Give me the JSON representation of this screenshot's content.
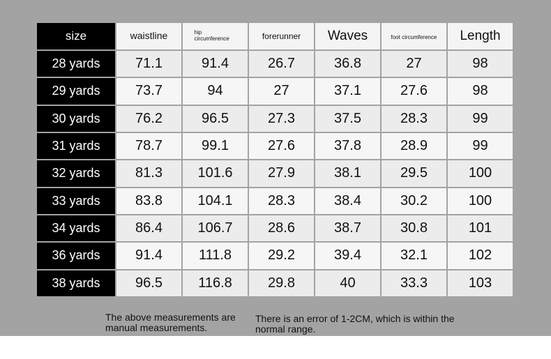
{
  "headers": {
    "size": "size",
    "waistline": "waistline",
    "hip": "hip circumference",
    "forerunner": "forerunner",
    "waves": "Waves",
    "foot": "foot circumference",
    "length": "Length"
  },
  "rows": [
    {
      "size": "28 yards",
      "waistline": "71.1",
      "hip": "91.4",
      "forerunner": "26.7",
      "waves": "36.8",
      "foot": "27",
      "length": "98"
    },
    {
      "size": "29 yards",
      "waistline": "73.7",
      "hip": "94",
      "forerunner": "27",
      "waves": "37.1",
      "foot": "27.6",
      "length": "98"
    },
    {
      "size": "30 yards",
      "waistline": "76.2",
      "hip": "96.5",
      "forerunner": "27.3",
      "waves": "37.5",
      "foot": "28.3",
      "length": "99"
    },
    {
      "size": "31 yards",
      "waistline": "78.7",
      "hip": "99.1",
      "forerunner": "27.6",
      "waves": "37.8",
      "foot": "28.9",
      "length": "99"
    },
    {
      "size": "32 yards",
      "waistline": "81.3",
      "hip": "101.6",
      "forerunner": "27.9",
      "waves": "38.1",
      "foot": "29.5",
      "length": "100"
    },
    {
      "size": "33 yards",
      "waistline": "83.8",
      "hip": "104.1",
      "forerunner": "28.3",
      "waves": "38.4",
      "foot": "30.2",
      "length": "100"
    },
    {
      "size": "34 yards",
      "waistline": "86.4",
      "hip": "106.7",
      "forerunner": "28.6",
      "waves": "38.7",
      "foot": "30.8",
      "length": "101"
    },
    {
      "size": "36 yards",
      "waistline": "91.4",
      "hip": "111.8",
      "forerunner": "29.2",
      "waves": "39.4",
      "foot": "32.1",
      "length": "102"
    },
    {
      "size": "38 yards",
      "waistline": "96.5",
      "hip": "116.8",
      "forerunner": "29.8",
      "waves": "40",
      "foot": "33.3",
      "length": "103"
    }
  ],
  "notes": {
    "left": "The above measurements are manual measurements.",
    "right": "There is an error of 1-2CM, which is within the normal range."
  },
  "colors": {
    "background": "#a3a3a3",
    "size_column": "#000000",
    "cell_light": "#ececec"
  }
}
